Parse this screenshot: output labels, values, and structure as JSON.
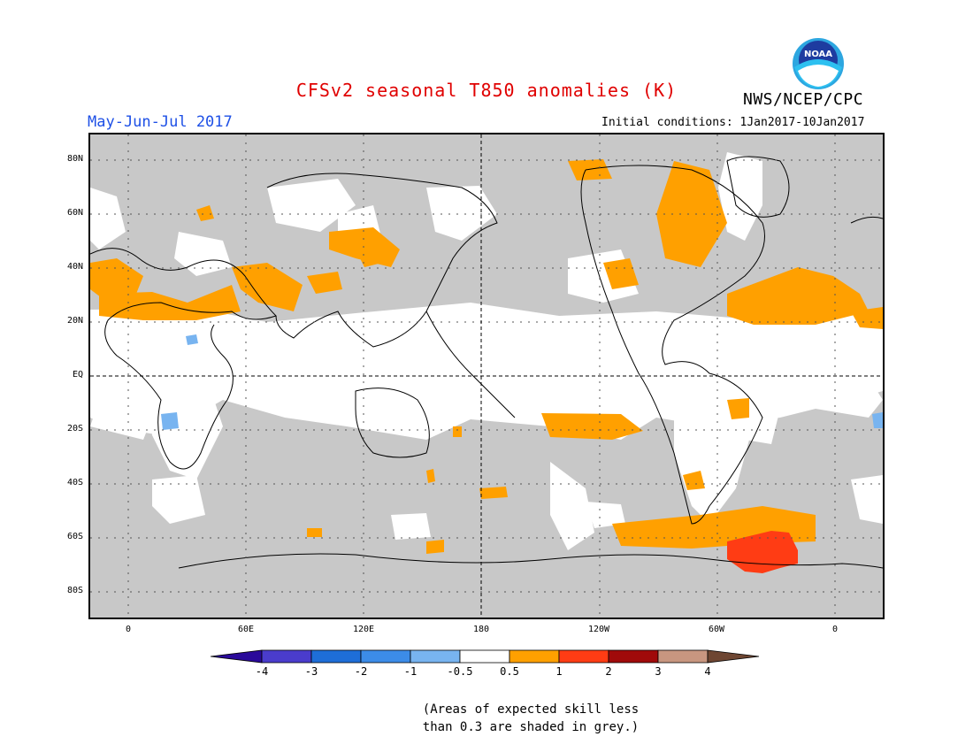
{
  "title": "CFSv2 seasonal T850 anomalies (K)",
  "organization": "NWS/NCEP/CPC",
  "logo_text": "NOAA",
  "season": "May-Jun-Jul 2017",
  "initial_conditions": "Initial conditions: 1Jan2017-10Jan2017",
  "lat_labels": [
    "80N",
    "60N",
    "40N",
    "20N",
    "EQ",
    "20S",
    "40S",
    "60S",
    "80S"
  ],
  "lon_labels": [
    "0",
    "60E",
    "120E",
    "180",
    "120W",
    "60W",
    "0"
  ],
  "colorbar": {
    "labels": [
      "-4",
      "-3",
      "-2",
      "-1",
      "-0.5",
      "0.5",
      "1",
      "2",
      "3",
      "4"
    ],
    "colors": [
      "#2a0a9a",
      "#4a3ccc",
      "#1e6ed8",
      "#3c8ce8",
      "#78b4f0",
      "#ffffff",
      "#ffa000",
      "#ff3c14",
      "#a00a0a",
      "#c89680",
      "#6e4632"
    ]
  },
  "skill_note": [
    "(Areas of expected skill less",
    "than 0.3 are shaded in grey.)"
  ],
  "colors": {
    "title": "#e00000",
    "season": "#1e50e6",
    "skill_grey": "#c8c8c8"
  }
}
